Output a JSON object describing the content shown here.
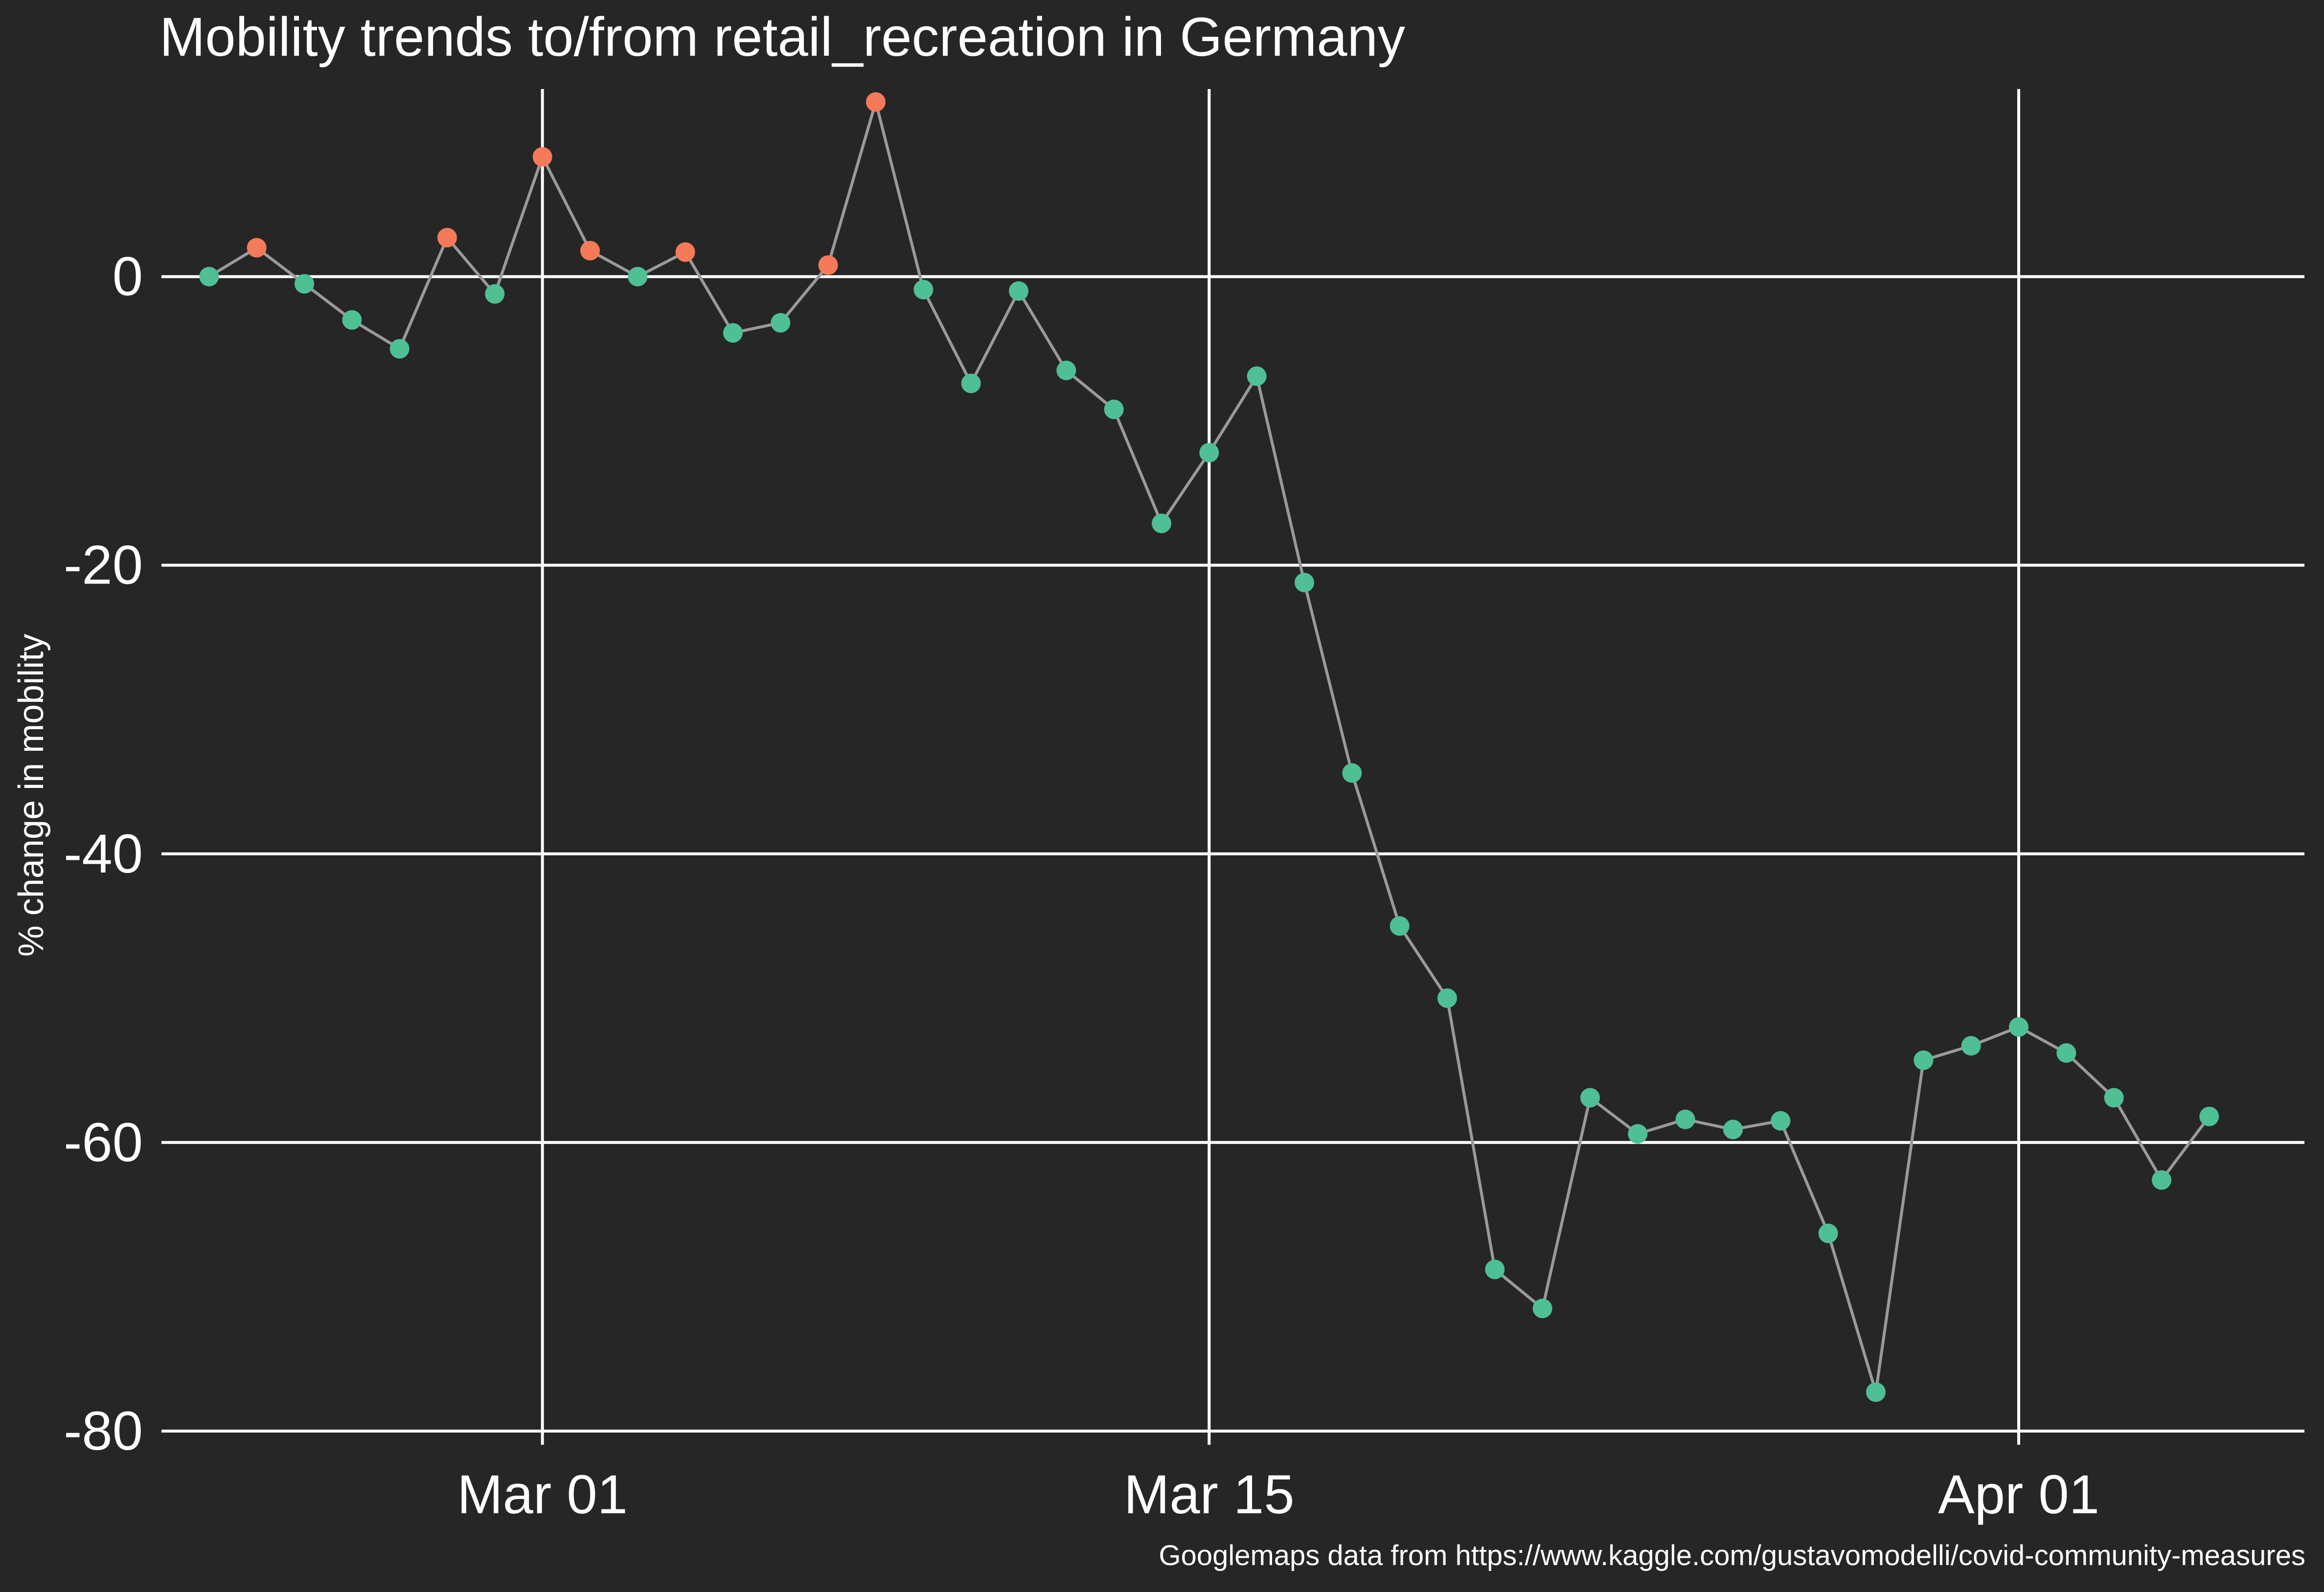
{
  "chart_data": {
    "type": "line",
    "title": "Mobility trends to/from retail_recreation in Germany",
    "xlabel": "",
    "ylabel": "% change in mobility",
    "caption": "Googlemaps data from https://www.kaggle.com/gustavomodelli/covid-community-measures",
    "ylim": [
      -80,
      13
    ],
    "yticks": [
      0,
      -20,
      -40,
      -60,
      -80
    ],
    "ytick_labels": [
      "0",
      "-20",
      "-40",
      "-60",
      "-80"
    ],
    "xlim": [
      "2020-02-22",
      "2020-04-07"
    ],
    "xticks": [
      "2020-03-01",
      "2020-03-15",
      "2020-04-01"
    ],
    "xtick_labels": [
      "Mar 01",
      "Mar 15",
      "Apr 01"
    ],
    "grid": true,
    "legend": "none",
    "colors": {
      "background": "#262626",
      "grid": "#ffffff",
      "line": "#9a9a9a",
      "positive_point": "#f47a5a",
      "negative_point": "#4fbf94"
    },
    "series": [
      {
        "x": [
          "2020-02-23",
          "2020-02-24",
          "2020-02-25",
          "2020-02-26",
          "2020-02-27",
          "2020-02-28",
          "2020-02-29",
          "2020-03-01",
          "2020-03-02",
          "2020-03-03",
          "2020-03-04",
          "2020-03-05",
          "2020-03-06",
          "2020-03-07",
          "2020-03-08",
          "2020-03-09",
          "2020-03-10",
          "2020-03-11",
          "2020-03-12",
          "2020-03-13",
          "2020-03-14",
          "2020-03-15",
          "2020-03-16",
          "2020-03-17",
          "2020-03-18",
          "2020-03-19",
          "2020-03-20",
          "2020-03-21",
          "2020-03-22",
          "2020-03-23",
          "2020-03-24",
          "2020-03-25",
          "2020-03-26",
          "2020-03-27",
          "2020-03-28",
          "2020-03-29",
          "2020-03-30",
          "2020-03-31",
          "2020-04-01",
          "2020-04-02",
          "2020-04-03",
          "2020-04-04",
          "2020-04-05"
        ],
        "values": [
          0,
          2,
          -0.5,
          -3,
          -5,
          2.7,
          -1.2,
          8.3,
          1.8,
          0,
          1.7,
          -3.9,
          -3.2,
          0.8,
          12.1,
          -0.9,
          -7.4,
          -1,
          -6.5,
          -9.2,
          -17.1,
          -12.2,
          -6.9,
          -21.2,
          -34.4,
          -45,
          -50,
          -68.8,
          -71.5,
          -56.9,
          -59.4,
          -58.4,
          -59.1,
          -58.5,
          -66.3,
          -77.3,
          -54.3,
          -53.3,
          -52,
          -53.8,
          -56.9,
          -62.6,
          -58.2
        ]
      }
    ]
  }
}
